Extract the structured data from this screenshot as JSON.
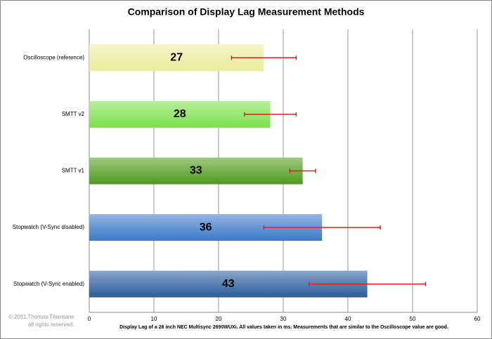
{
  "chart_data": {
    "type": "hbar_error",
    "title": "Comparison of Display Lag Measurement Methods",
    "xlabel": "Display Lag of a 26 inch  NEC Multisync  2690WUXi. All values taken in ms. Measurements that are similar to the Oscilloscope  value are good.",
    "credit": [
      "© 2011 Thomas Thiemann",
      "all rights reserved."
    ],
    "categories": [
      "Oscilloscope (reference)",
      "SMTT v2",
      "SMTT v1",
      "Stopwatch (V-Sync disabled)",
      "Stopwatch (V-Sync enabled)"
    ],
    "values": [
      27,
      28,
      33,
      36,
      43
    ],
    "errors": [
      5,
      4,
      2,
      9,
      9
    ],
    "colors": [
      "#ecec9c",
      "#7ee04a",
      "#4f9a1c",
      "#3a78c8",
      "#2a5c9c"
    ],
    "error_color": "#e02020",
    "xlim": [
      0,
      60
    ],
    "xticks": [
      0,
      10,
      20,
      30,
      40,
      50,
      60
    ],
    "grid": true
  }
}
